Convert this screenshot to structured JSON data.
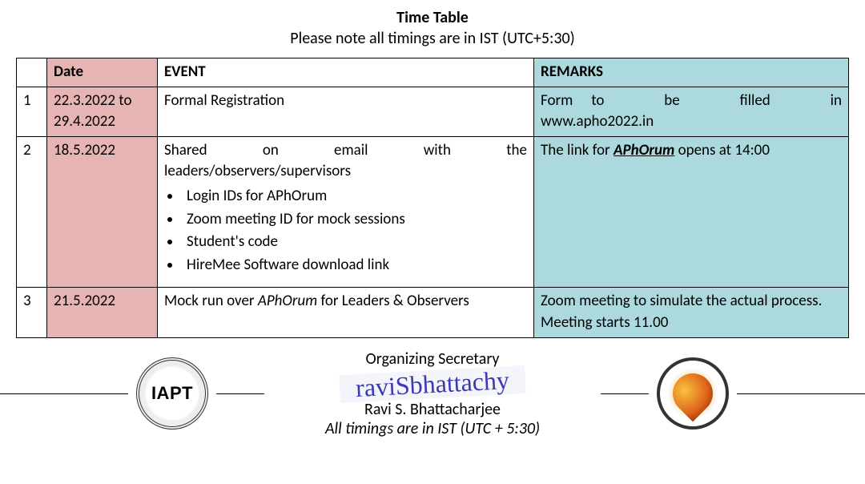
{
  "header": {
    "title": "Time Table",
    "subtitle": "Please note all timings are in IST (UTC+5:30)"
  },
  "table": {
    "columns": {
      "num": "",
      "date": "Date",
      "event": "EVENT",
      "remarks": "REMARKS"
    },
    "colors": {
      "date_bg": "#e6b5b3",
      "remarks_bg": "#abd9de"
    },
    "row1": {
      "num": "1",
      "date": "22.3.2022 to 29.4.2022",
      "event": "Formal Registration",
      "remarks_pre": "Form",
      "remarks_words": "to be filled in",
      "remarks_post": "www.apho2022.in"
    },
    "row2": {
      "num": "2",
      "date": "18.5.2022",
      "event_line_pre": "Shared on email with the",
      "event_line_post": "leaders/observers/supervisors",
      "bullet1": "Login IDs for APhOrum",
      "bullet2": "Zoom meeting ID for mock sessions",
      "bullet3": "Student's code",
      "bullet4": "HireMee Software download link",
      "remarks_pre": "The link for ",
      "remarks_em": "APhOrum",
      "remarks_post": " opens at 14:00"
    },
    "row3": {
      "num": "3",
      "date": "21.5.2022",
      "event_pre": "Mock run over ",
      "event_em": "APhOrum",
      "event_post": " for Leaders & Observers",
      "remarks": "Zoom meeting to simulate the actual process. Meeting starts 11.00"
    }
  },
  "footer": {
    "org_secretary_label": "Organizing Secretary",
    "signature_text": "raviSbhattachy",
    "name": "Ravi S. Bhattacharjee",
    "tz_note": "All timings are in IST (UTC + 5:30)",
    "iapt_label": "IAPT"
  }
}
